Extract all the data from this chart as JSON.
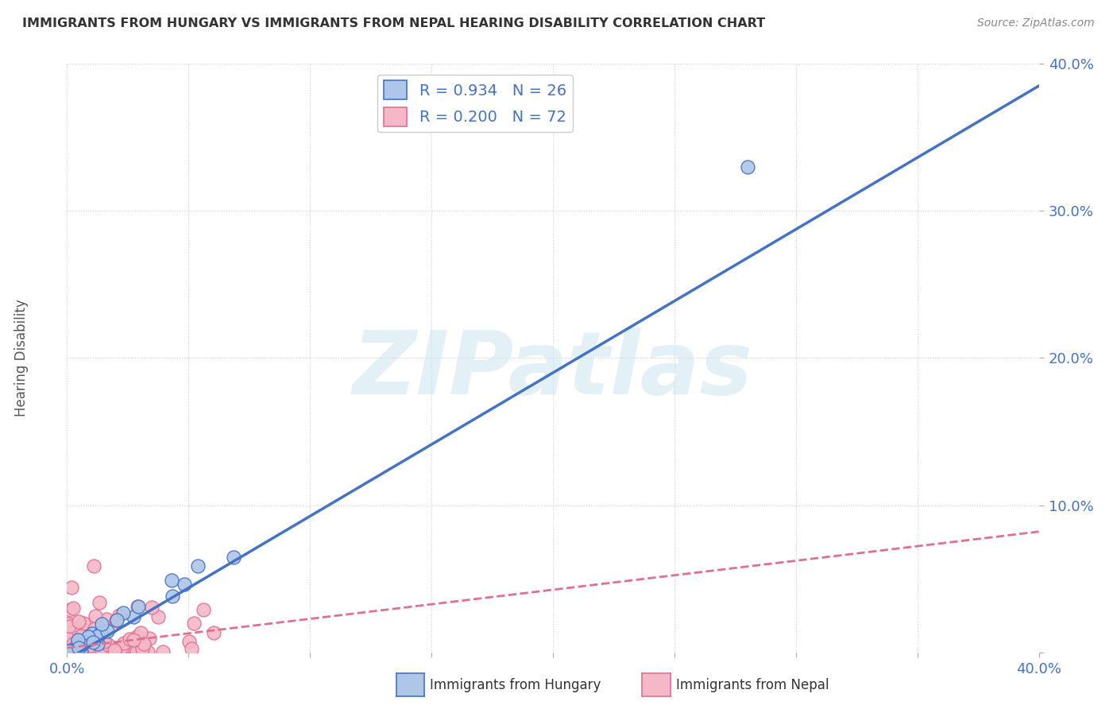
{
  "title": "IMMIGRANTS FROM HUNGARY VS IMMIGRANTS FROM NEPAL HEARING DISABILITY CORRELATION CHART",
  "source": "Source: ZipAtlas.com",
  "ylabel": "Hearing Disability",
  "xlim": [
    0.0,
    0.4
  ],
  "ylim": [
    0.0,
    0.4
  ],
  "watermark": "ZIPatlas",
  "hungary_color": "#aec6e8",
  "hungary_edge_color": "#4472c4",
  "nepal_color": "#f4b8c8",
  "nepal_edge_color": "#e07090",
  "hungary_line_color": "#4472c4",
  "nepal_line_color": "#e07090",
  "R_hungary": 0.934,
  "N_hungary": 26,
  "R_nepal": 0.2,
  "N_nepal": 72,
  "background_color": "#ffffff",
  "grid_color": "#cccccc",
  "hungary_line_x": [
    0.0,
    0.4
  ],
  "hungary_line_y": [
    -0.005,
    0.385
  ],
  "nepal_line_x": [
    0.0,
    0.4
  ],
  "nepal_line_y": [
    0.003,
    0.082
  ]
}
